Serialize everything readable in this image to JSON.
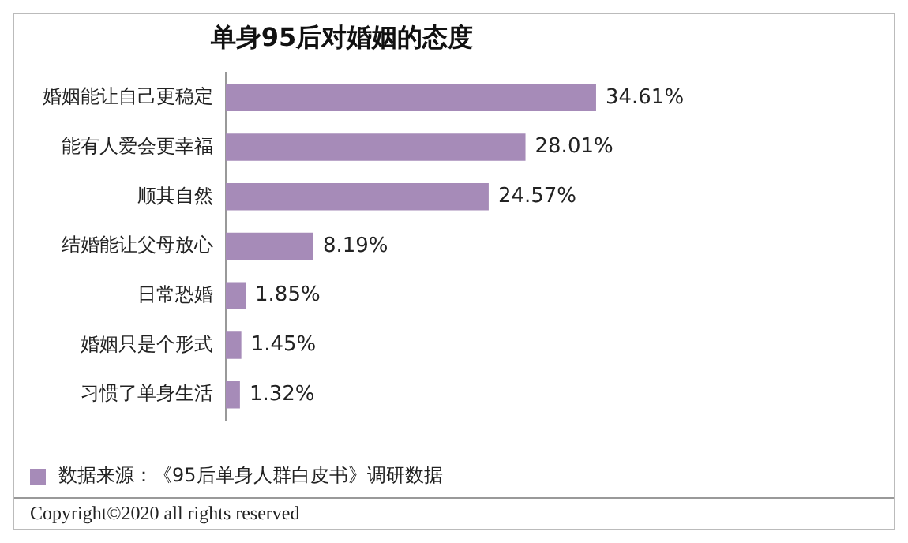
{
  "chart_data": {
    "type": "bar",
    "orientation": "horizontal",
    "title": "单身95后对婚姻的态度",
    "categories": [
      "婚姻能让自己更稳定",
      "能有人爱会更幸福",
      "顺其自然",
      "结婚能让父母放心",
      "日常恐婚",
      "婚姻只是个形式",
      "习惯了单身生活"
    ],
    "values": [
      34.61,
      28.01,
      24.57,
      8.19,
      1.85,
      1.45,
      1.32
    ],
    "value_labels": [
      "34.61%",
      "28.01%",
      "24.57%",
      "8.19%",
      "1.85%",
      "1.45%",
      "1.32%"
    ],
    "color": "#a68bb8",
    "annotations": [
      "数据来源：《95后单身人群白皮书》调研数据",
      "Copyright©2020 all rights reserved"
    ]
  }
}
